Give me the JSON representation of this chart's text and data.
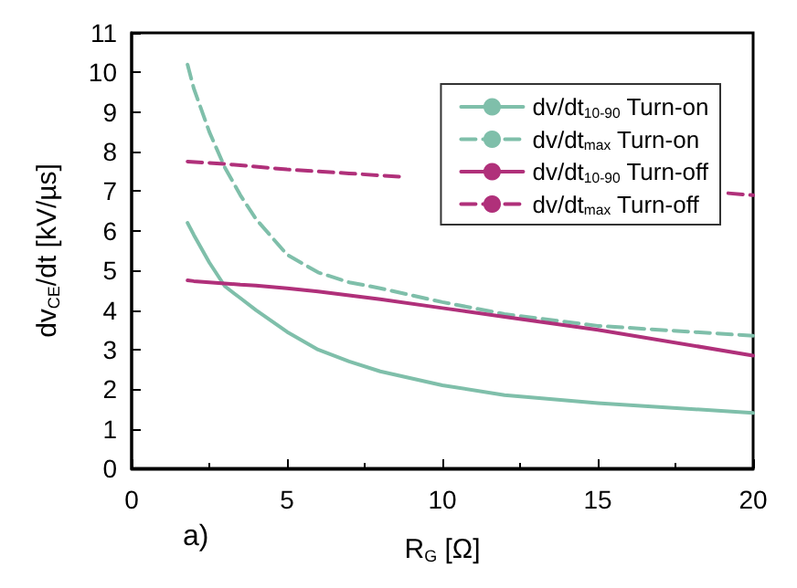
{
  "chart_data": {
    "type": "line",
    "xlabel": "R$_{G}$ [Ω]",
    "ylabel": "dv$_{CE}$/dt [kV/µs]",
    "annotations": [
      "a)"
    ],
    "x": [
      1.8,
      2,
      2.5,
      3,
      3.5,
      4,
      5,
      6,
      7,
      8,
      10,
      12,
      15,
      20
    ],
    "series": [
      {
        "name": "dv/dt$_{10-90}$ Turn-on",
        "color": "#7fbfaa",
        "line_style": "solid",
        "values": [
          6.2,
          5.9,
          5.2,
          4.6,
          4.3,
          4.0,
          3.45,
          3.0,
          2.7,
          2.45,
          2.1,
          1.85,
          1.65,
          1.4
        ]
      },
      {
        "name": "dv/dt$_{max}$ Turn-on",
        "color": "#7fbfaa",
        "line_style": "dashed",
        "values": [
          10.2,
          9.6,
          8.5,
          7.6,
          6.9,
          6.3,
          5.4,
          4.95,
          4.7,
          4.55,
          4.2,
          3.9,
          3.6,
          3.35
        ]
      },
      {
        "name": "dv/dt$_{10-90}$ Turn-off",
        "color": "#b0307a",
        "line_style": "solid",
        "values": [
          4.75,
          4.73,
          4.7,
          4.67,
          4.64,
          4.62,
          4.55,
          4.47,
          4.37,
          4.27,
          4.05,
          3.83,
          3.5,
          2.85
        ]
      },
      {
        "name": "dv/dt$_{max}$ Turn-off",
        "color": "#b0307a",
        "line_style": "dashed",
        "x": [
          1.8,
          3,
          5,
          7,
          8.8,
          10,
          15,
          19.2,
          20
        ],
        "values": [
          7.75,
          7.69,
          7.55,
          7.45,
          7.36,
          null,
          null,
          6.95,
          6.9
        ]
      }
    ],
    "xlim": [
      0,
      20
    ],
    "xticks": [
      0,
      5,
      10,
      15,
      20
    ],
    "ylim": [
      0,
      11
    ],
    "yticks": [
      0,
      1,
      2,
      3,
      4,
      5,
      6,
      7,
      8,
      9,
      10,
      11
    ],
    "grid": false,
    "legend": "top right",
    "marker": "none"
  }
}
